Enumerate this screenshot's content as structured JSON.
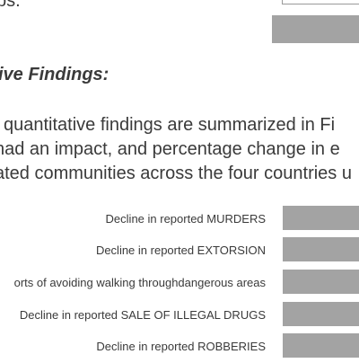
{
  "document": {
    "top_fragment": "ps.",
    "heading": "ive Findings:",
    "paragraph_lines": [
      "l quantitative findings are summarized in Fi",
      "had an impact, and percentage change in e",
      "ated communities across the four countries u"
    ]
  },
  "chart_data": {
    "type": "bar",
    "categories": [
      "Decline in reported MURDERS",
      "Decline in reported EXTORSION",
      "orts of avoiding walking throughdangerous areas",
      "Decline in reported SALE OF ILLEGAL DRUGS",
      "Decline in reported ROBBERIES"
    ],
    "bar_color": "#a3a3a3"
  }
}
